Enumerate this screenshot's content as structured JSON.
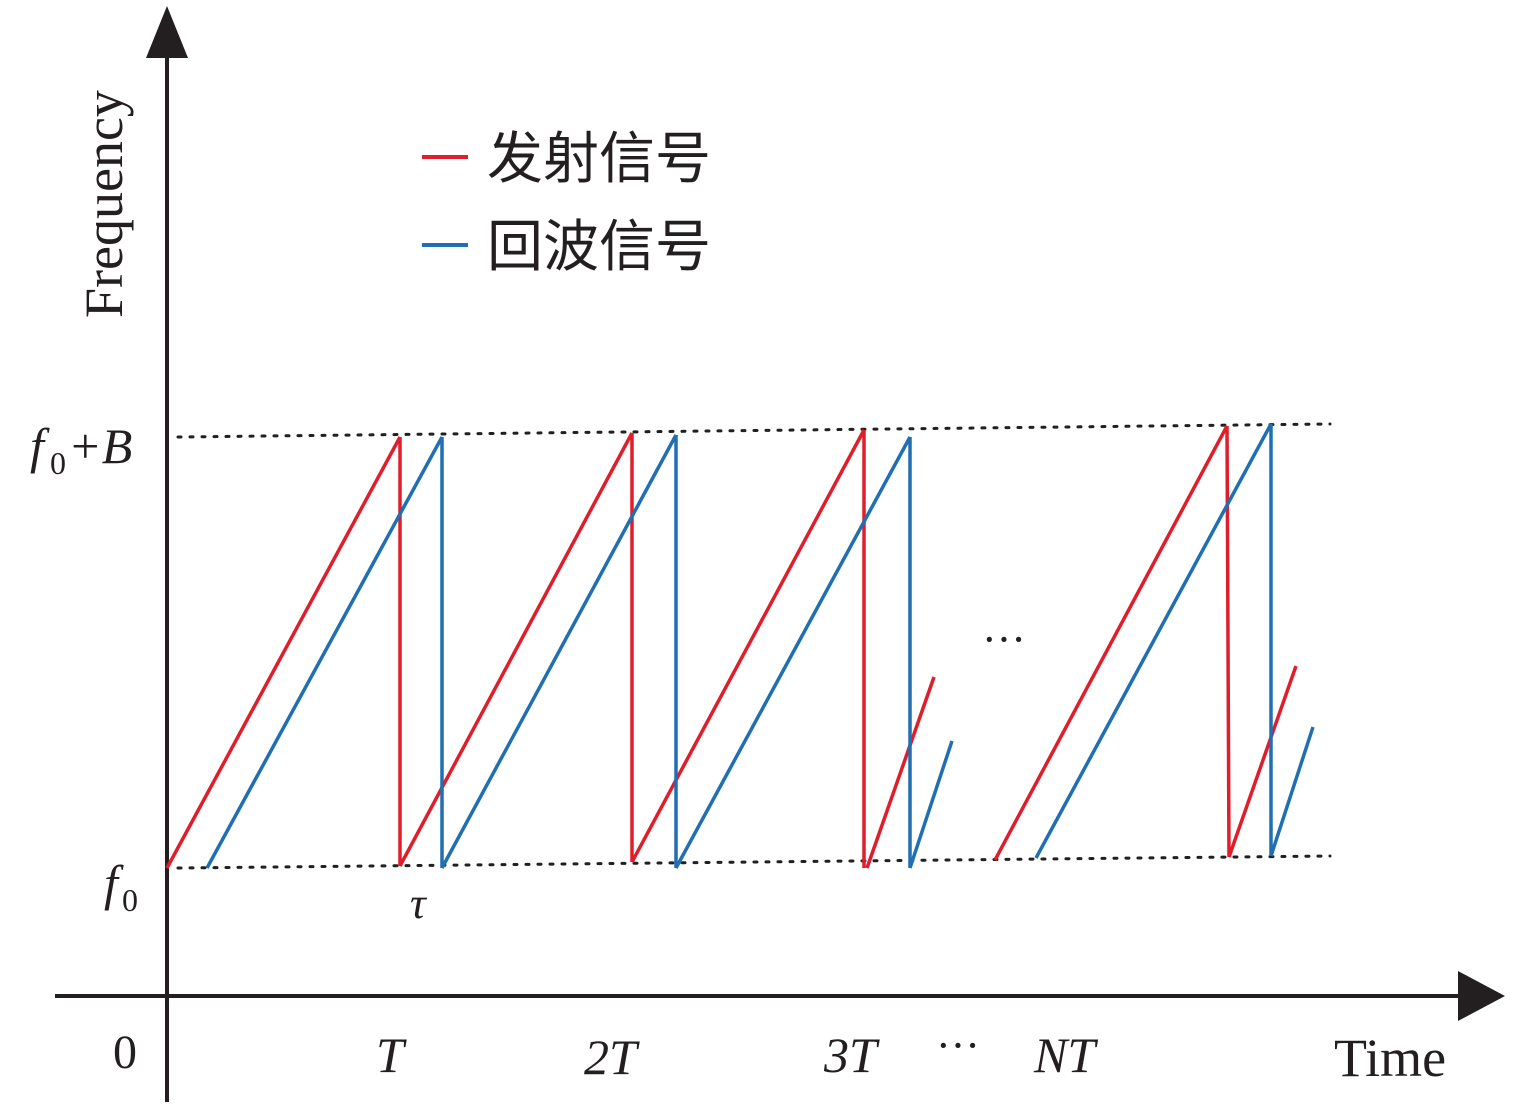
{
  "axes": {
    "y_label": "Frequency",
    "x_label": "Time",
    "origin_label": "0"
  },
  "levels": {
    "upper": "+B",
    "lower": "f",
    "lower_sub": "0",
    "upper_f": "f",
    "upper_sub": "0"
  },
  "delay_label": "τ",
  "ticks": {
    "t1": "T",
    "t2": "2T",
    "t3": "3T",
    "ellipsis_axis": "···",
    "tn": "NT"
  },
  "mid_ellipsis": "···",
  "legend": {
    "transmit": "发射信号",
    "echo": "回波信号"
  },
  "colors": {
    "transmit": "#e01e2b",
    "echo": "#1f6fb2",
    "axis": "#231f20"
  }
}
